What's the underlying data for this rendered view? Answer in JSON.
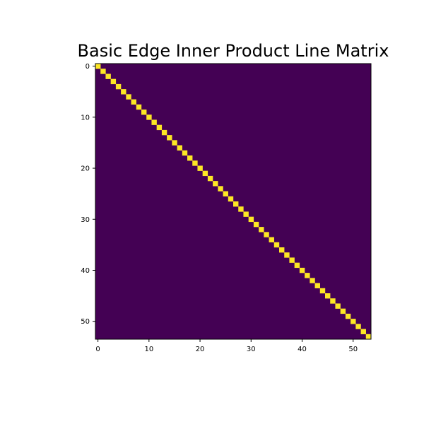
{
  "chart_data": {
    "type": "heatmap",
    "title": "Basic Edge Inner Product Line Matrix",
    "xlabel": "",
    "ylabel": "",
    "size": 54,
    "pattern": "identity",
    "diagonal_value": 1,
    "off_diagonal_value": 0,
    "xlim": [
      -0.5,
      53.5
    ],
    "ylim": [
      53.5,
      -0.5
    ],
    "x_ticks": [
      0,
      10,
      20,
      30,
      40,
      50
    ],
    "y_ticks": [
      0,
      10,
      20,
      30,
      40,
      50
    ],
    "grid": false,
    "colormap": {
      "name": "viridis",
      "low_color": "#440154",
      "high_color": "#fde725"
    }
  }
}
